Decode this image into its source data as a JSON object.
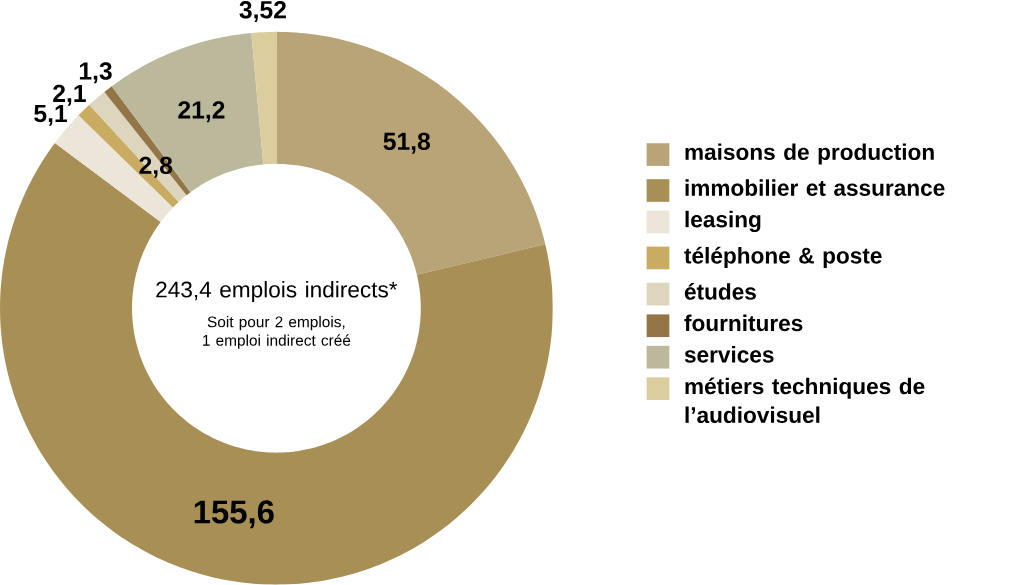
{
  "chart_data": {
    "type": "donut",
    "categories": [
      "maisons de production",
      "immobilier et assurance",
      "leasing",
      "téléphone & poste",
      "études",
      "fournitures",
      "services",
      "métiers techniques de l’audiovisuel"
    ],
    "values": [
      51.8,
      155.6,
      5.1,
      2.1,
      2.8,
      1.3,
      21.2,
      3.52
    ],
    "value_labels": [
      "51,8",
      "155,6",
      "5,1",
      "2,1",
      "2,8",
      "1,3",
      "21,2",
      "3,52"
    ],
    "colors": [
      "#b9a477",
      "#a88f55",
      "#ebe5da",
      "#c9ab62",
      "#ddd5bd",
      "#937548",
      "#bbb89b",
      "#dccd9f"
    ],
    "annotations": [
      "243,4 emplois indirects*",
      "Soit pour 2 emplois, 1 emploi indirect créé"
    ],
    "legend": "right"
  }
}
